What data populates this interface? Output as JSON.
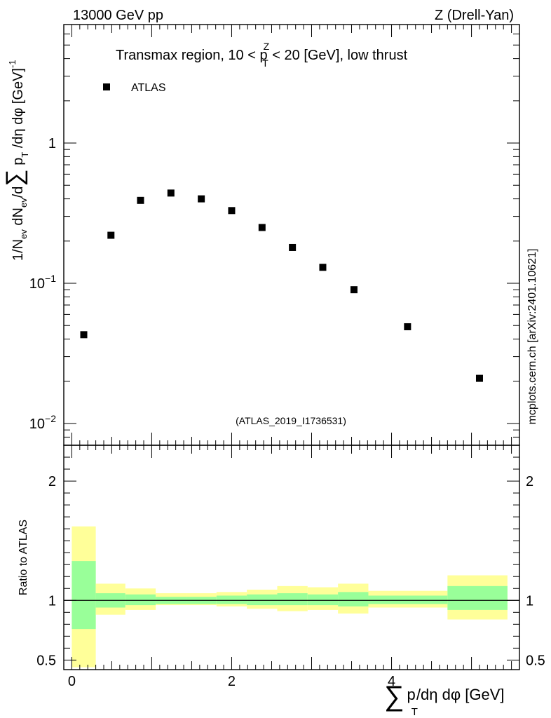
{
  "header": {
    "left": "13000 GeV pp",
    "right": "Z (Drell-Yan)"
  },
  "side_label": "mcplots.cern.ch [arXiv:2401.10621]",
  "chart_data": [
    {
      "panel": "main",
      "type": "scatter",
      "title": "Transmax region, 10 < p_T^Z < 20 [GeV], low thrust",
      "title_parts": [
        "Transmax region, 10 < p",
        "Z",
        "T",
        " < 20 [GeV], low thrust"
      ],
      "ylabel": "1/N_ev dN_ev/d∑ p_T /dη dφ [GeV]^-1",
      "ylabel_parts": [
        "1/N",
        "ev",
        " dN",
        "ev",
        "/d",
        "∑",
        " p",
        "T",
        " /dη dφ  [GeV]",
        "-1"
      ],
      "yscale": "log",
      "ylim": [
        0.007,
        7
      ],
      "xlim": [
        -0.1,
        5.6
      ],
      "y_tick_labels": [
        {
          "value": 1,
          "label": "1"
        },
        {
          "value": 0.1,
          "label": "10",
          "exp": "−1"
        },
        {
          "value": 0.01,
          "label": "10",
          "exp": "−2"
        }
      ],
      "legend": [
        {
          "label": "ATLAS",
          "marker": "square",
          "color": "#000000"
        }
      ],
      "legend_position": "top-left",
      "watermark": "(ATLAS_2019_I1736531)",
      "series": [
        {
          "name": "ATLAS",
          "x": [
            0.15,
            0.49,
            0.86,
            1.24,
            1.62,
            2.0,
            2.38,
            2.76,
            3.14,
            3.53,
            4.2,
            5.1
          ],
          "y": [
            0.043,
            0.22,
            0.39,
            0.44,
            0.4,
            0.33,
            0.25,
            0.18,
            0.13,
            0.09,
            0.049,
            0.021
          ]
        }
      ]
    },
    {
      "panel": "ratio",
      "type": "area",
      "ylabel": "Ratio to ATLAS",
      "xlabel": "∑ p_T /dη dφ [GeV]",
      "xlabel_parts": [
        "∑",
        "p",
        "T",
        "/dη dφ [GeV]"
      ],
      "xlim": [
        -0.1,
        5.6
      ],
      "ylim": [
        0.42,
        2.3
      ],
      "x_tick_labels": [
        {
          "value": 0,
          "label": "0"
        },
        {
          "value": 2,
          "label": "2"
        },
        {
          "value": 4,
          "label": "4"
        }
      ],
      "y_tick_labels": [
        {
          "value": 0.5,
          "label": "0.5"
        },
        {
          "value": 1,
          "label": "1"
        },
        {
          "value": 2,
          "label": "2"
        }
      ],
      "reference_line": 1.0,
      "bins": [
        {
          "x0": 0.0,
          "x1": 0.3,
          "inner": [
            0.76,
            1.33
          ],
          "outer": [
            0.44,
            1.62
          ]
        },
        {
          "x0": 0.3,
          "x1": 0.67,
          "inner": [
            0.94,
            1.06
          ],
          "outer": [
            0.88,
            1.14
          ]
        },
        {
          "x0": 0.67,
          "x1": 1.05,
          "inner": [
            0.96,
            1.05
          ],
          "outer": [
            0.92,
            1.1
          ]
        },
        {
          "x0": 1.05,
          "x1": 1.43,
          "inner": [
            0.97,
            1.03
          ],
          "outer": [
            0.96,
            1.06
          ]
        },
        {
          "x0": 1.43,
          "x1": 1.81,
          "inner": [
            0.97,
            1.03
          ],
          "outer": [
            0.96,
            1.06
          ]
        },
        {
          "x0": 1.81,
          "x1": 2.19,
          "inner": [
            0.97,
            1.04
          ],
          "outer": [
            0.95,
            1.07
          ]
        },
        {
          "x0": 2.19,
          "x1": 2.57,
          "inner": [
            0.96,
            1.05
          ],
          "outer": [
            0.93,
            1.09
          ]
        },
        {
          "x0": 2.57,
          "x1": 2.95,
          "inner": [
            0.96,
            1.06
          ],
          "outer": [
            0.91,
            1.12
          ]
        },
        {
          "x0": 2.95,
          "x1": 3.33,
          "inner": [
            0.96,
            1.05
          ],
          "outer": [
            0.92,
            1.11
          ]
        },
        {
          "x0": 3.33,
          "x1": 3.71,
          "inner": [
            0.95,
            1.07
          ],
          "outer": [
            0.89,
            1.14
          ]
        },
        {
          "x0": 3.71,
          "x1": 4.7,
          "inner": [
            0.97,
            1.04
          ],
          "outer": [
            0.94,
            1.08
          ]
        },
        {
          "x0": 4.7,
          "x1": 5.45,
          "inner": [
            0.92,
            1.12
          ],
          "outer": [
            0.84,
            1.21
          ]
        }
      ]
    }
  ],
  "colors": {
    "band_outer": "#ffff99",
    "band_inner": "#99ff99",
    "marker": "#000000",
    "watermark": "#999999",
    "side_label": "#777777"
  }
}
